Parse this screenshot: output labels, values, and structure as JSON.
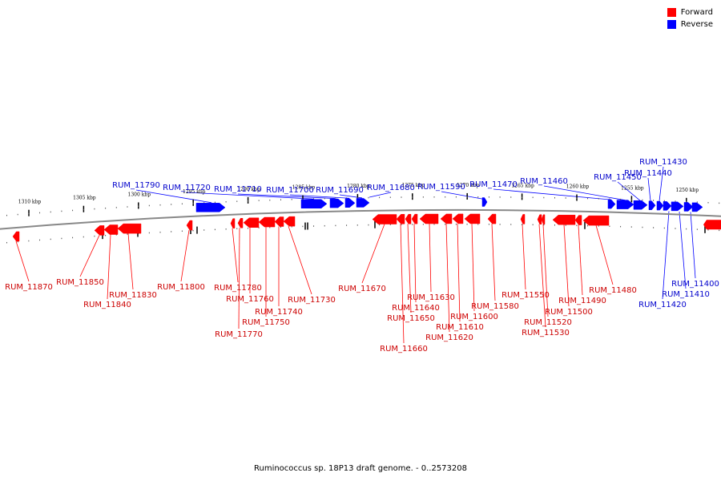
{
  "legend": [
    {
      "label": "Forward",
      "color": "#ff0000"
    },
    {
      "label": "Reverse",
      "color": "#0000ff"
    }
  ],
  "caption": "Ruminococcus sp. 18P13 draft genome. - 0..2573208",
  "colors": {
    "forward": "#ff0000",
    "reverse": "#0000ff",
    "forward_label": "#cc0000",
    "reverse_label": "#0000cc",
    "backbone": "#888888"
  },
  "axis": {
    "unit": "kbp",
    "ticks": [
      {
        "kbp": 1310,
        "label": "1310 kbp"
      },
      {
        "kbp": 1305,
        "label": "1305 kbp"
      },
      {
        "kbp": 1300,
        "label": "1300 kbp"
      },
      {
        "kbp": 1295,
        "label": "1295 kbp"
      },
      {
        "kbp": 1290,
        "label": "1290 kbp"
      },
      {
        "kbp": 1285,
        "label": "1285 kbp"
      },
      {
        "kbp": 1280,
        "label": "1280 kbp"
      },
      {
        "kbp": 1275,
        "label": "1275 kbp"
      },
      {
        "kbp": 1270,
        "label": "1270 kbp"
      },
      {
        "kbp": 1265,
        "label": "1265 kbp"
      },
      {
        "kbp": 1260,
        "label": "1260 kbp"
      },
      {
        "kbp": 1255,
        "label": "1255 kbp"
      },
      {
        "kbp": 1250,
        "label": "1250 kbp"
      }
    ]
  },
  "reverse_genes": [
    {
      "label": "RUM_11790"
    },
    {
      "label": "RUM_11720"
    },
    {
      "label": "RUM_11710"
    },
    {
      "label": "RUM_11700"
    },
    {
      "label": "RUM_11690"
    },
    {
      "label": "RUM_11680"
    },
    {
      "label": "RUM_11590"
    },
    {
      "label": "RUM_11470"
    },
    {
      "label": "RUM_11460"
    },
    {
      "label": "RUM_11450"
    },
    {
      "label": "RUM_11440"
    },
    {
      "label": "RUM_11430"
    },
    {
      "label": "RUM_11420"
    },
    {
      "label": "RUM_11410"
    },
    {
      "label": "RUM_11400"
    }
  ],
  "forward_genes": [
    {
      "label": "RUM_11870"
    },
    {
      "label": "RUM_11850"
    },
    {
      "label": "RUM_11840"
    },
    {
      "label": "RUM_11830"
    },
    {
      "label": "RUM_11800"
    },
    {
      "label": "RUM_11780"
    },
    {
      "label": "RUM_11770"
    },
    {
      "label": "RUM_11760"
    },
    {
      "label": "RUM_11750"
    },
    {
      "label": "RUM_11740"
    },
    {
      "label": "RUM_11730"
    },
    {
      "label": "RUM_11670"
    },
    {
      "label": "RUM_11660"
    },
    {
      "label": "RUM_11650"
    },
    {
      "label": "RUM_11640"
    },
    {
      "label": "RUM_11630"
    },
    {
      "label": "RUM_11620"
    },
    {
      "label": "RUM_11610"
    },
    {
      "label": "RUM_11600"
    },
    {
      "label": "RUM_11580"
    },
    {
      "label": "RUM_11550"
    },
    {
      "label": "RUM_11530"
    },
    {
      "label": "RUM_11520"
    },
    {
      "label": "RUM_11500"
    },
    {
      "label": "RUM_11490"
    },
    {
      "label": "RUM_11480"
    }
  ]
}
